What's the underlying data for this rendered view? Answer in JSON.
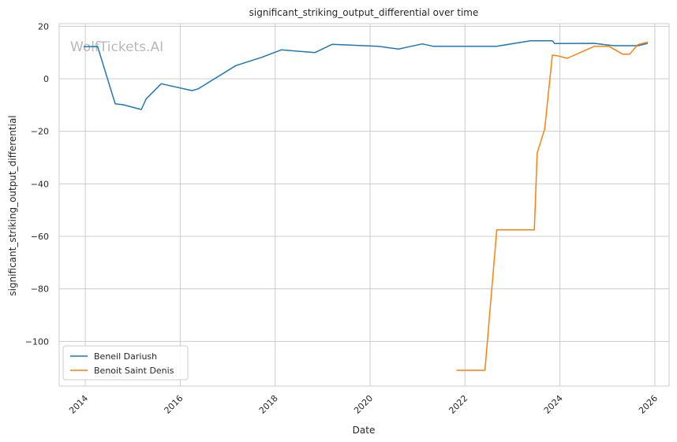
{
  "chart_data": {
    "type": "line",
    "title": "significant_striking_output_differential over time",
    "xlabel": "Date",
    "ylabel": "significant_striking_output_differential",
    "watermark": "WolfTickets.AI",
    "xlim": [
      2013.45,
      2026.3
    ],
    "ylim": [
      -117,
      21
    ],
    "x_ticks": [
      2014,
      2016,
      2018,
      2020,
      2022,
      2024,
      2026
    ],
    "y_ticks": [
      20,
      0,
      -20,
      -40,
      -60,
      -80,
      -100
    ],
    "y_tick_labels": [
      "20",
      "0",
      "−20",
      "−40",
      "−60",
      "−80",
      "−100"
    ],
    "grid": true,
    "legend_position": "lower-left",
    "series": [
      {
        "name": "Beneil Dariush",
        "color": "#1f77b4",
        "points": [
          [
            2013.97,
            12.2
          ],
          [
            2014.26,
            12.3
          ],
          [
            2014.63,
            -9.5
          ],
          [
            2014.8,
            -9.9
          ],
          [
            2015.18,
            -11.7
          ],
          [
            2015.28,
            -7.7
          ],
          [
            2015.6,
            -1.9
          ],
          [
            2016.25,
            -4.5
          ],
          [
            2016.38,
            -3.8
          ],
          [
            2017.17,
            5.0
          ],
          [
            2017.72,
            8.2
          ],
          [
            2018.13,
            11.0
          ],
          [
            2018.84,
            10.0
          ],
          [
            2019.2,
            13.1
          ],
          [
            2020.17,
            12.4
          ],
          [
            2020.6,
            11.3
          ],
          [
            2021.1,
            13.3
          ],
          [
            2021.33,
            12.4
          ],
          [
            2022.67,
            12.4
          ],
          [
            2023.38,
            14.5
          ],
          [
            2023.84,
            14.5
          ],
          [
            2023.89,
            13.4
          ],
          [
            2024.72,
            13.5
          ],
          [
            2025.14,
            12.6
          ],
          [
            2025.65,
            12.6
          ],
          [
            2025.85,
            13.5
          ]
        ]
      },
      {
        "name": "Benoit Saint Denis",
        "color": "#ff7f0e",
        "points": [
          [
            2021.82,
            -111.0
          ],
          [
            2022.42,
            -111.0
          ],
          [
            2022.67,
            -57.5
          ],
          [
            2023.46,
            -57.5
          ],
          [
            2023.52,
            -28.3
          ],
          [
            2023.68,
            -19.0
          ],
          [
            2023.84,
            9.0
          ],
          [
            2023.94,
            8.8
          ],
          [
            2024.15,
            7.8
          ],
          [
            2024.73,
            12.4
          ],
          [
            2025.03,
            12.4
          ],
          [
            2025.32,
            9.4
          ],
          [
            2025.47,
            9.4
          ],
          [
            2025.64,
            13.0
          ],
          [
            2025.85,
            14.0
          ]
        ]
      }
    ]
  }
}
